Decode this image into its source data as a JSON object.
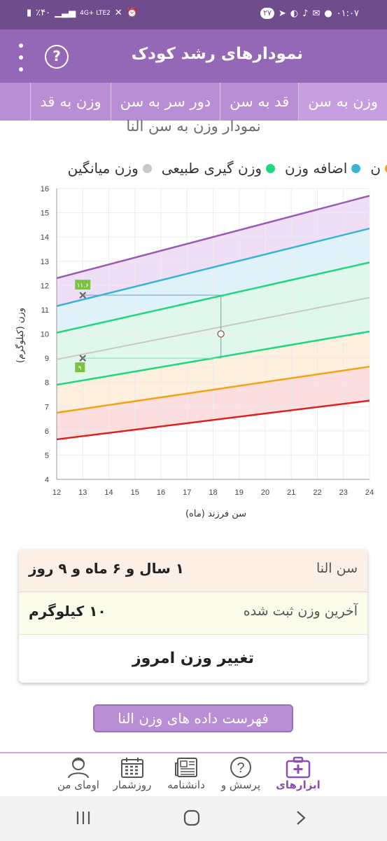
{
  "status": {
    "time": "۰۱:۰۷",
    "notif_count": "۲۷",
    "battery": "٪۴۰",
    "network": "4G+ LTE2"
  },
  "appbar": {
    "title": "نمودارهای رشد کودک",
    "help": "?"
  },
  "tabs": [
    {
      "label": "وزن به سن",
      "active": true
    },
    {
      "label": "قد به سن"
    },
    {
      "label": "دور سر به سن"
    },
    {
      "label": "وزن به قد"
    }
  ],
  "chart": {
    "title": "نمودار وزن به سن النا",
    "legend": [
      {
        "label": "اضافه وزن",
        "color": "#3bb4d3"
      },
      {
        "label": "وزن گیری طبیعی",
        "color": "#1fd77e"
      },
      {
        "label": "وزن میانگین",
        "color": "#c8c8c8"
      }
    ],
    "legend_partial_label": "ن",
    "legend_partial_color": "#f3a214"
  },
  "chart_data": {
    "type": "line",
    "xlabel": "سن فرزند (ماه)",
    "ylabel": "وزن (کیلوگرم)",
    "xlim": [
      12,
      24
    ],
    "ylim": [
      4,
      16
    ],
    "xticks": [
      12,
      13,
      14,
      15,
      16,
      17,
      18,
      19,
      20,
      21,
      22,
      23,
      24
    ],
    "yticks": [
      4,
      5,
      6,
      7,
      8,
      9,
      10,
      11,
      12,
      13,
      14,
      15,
      16
    ],
    "series": [
      {
        "color": "#9b59b6",
        "x": [
          12,
          24
        ],
        "y": [
          12.3,
          15.7
        ]
      },
      {
        "color": "#3bb4d3",
        "x": [
          12,
          24
        ],
        "y": [
          11.15,
          14.35
        ]
      },
      {
        "color": "#1fd77e",
        "x": [
          12,
          24
        ],
        "y": [
          10.05,
          12.95
        ]
      },
      {
        "color": "#c8c8c8",
        "x": [
          12,
          24
        ],
        "y": [
          8.95,
          11.5
        ]
      },
      {
        "color": "#1fd77e",
        "x": [
          12,
          24
        ],
        "y": [
          7.9,
          10.1
        ]
      },
      {
        "color": "#f3a214",
        "x": [
          12,
          24
        ],
        "y": [
          6.75,
          8.65
        ]
      },
      {
        "color": "#e02020",
        "x": [
          12,
          24
        ],
        "y": [
          5.65,
          7.25
        ]
      }
    ],
    "bands": [
      {
        "color": "#e9d4f3",
        "from": 0,
        "to": 1
      },
      {
        "color": "#d4ecf7",
        "from": 1,
        "to": 2
      },
      {
        "color": "#d6f5e5",
        "from": 2,
        "to": 4
      },
      {
        "color": "#fdebd3",
        "from": 4,
        "to": 5
      },
      {
        "color": "#fcd3d3",
        "from": 5,
        "to": 6
      }
    ],
    "markers": [
      {
        "x": 13,
        "y": 11.6,
        "label": "۱۱.۶",
        "color": "#7cc242"
      },
      {
        "x": 13,
        "y": 9.0,
        "label": "۹",
        "color": "#7cc242"
      }
    ],
    "current": {
      "x": 18.3,
      "y": 10
    }
  },
  "info": {
    "age_label": "سن النا",
    "age_value": "۱ سال و ۶ ماه و ۹ روز",
    "weight_label": "آخرین وزن ثبت شده",
    "weight_value": "۱۰ کیلوگرم",
    "change_button": "تغییر وزن امروز"
  },
  "list_button": "فهرست داده های وزن النا",
  "bottom_nav": [
    {
      "label": "ابزارهای",
      "active": true,
      "icon": "medical-kit-icon"
    },
    {
      "label": "پرسش و",
      "icon": "question-icon"
    },
    {
      "label": "دانشنامه",
      "icon": "newspaper-icon"
    },
    {
      "label": "روزشمار",
      "icon": "calendar-icon"
    },
    {
      "label": "اومای من",
      "icon": "profile-icon"
    }
  ]
}
